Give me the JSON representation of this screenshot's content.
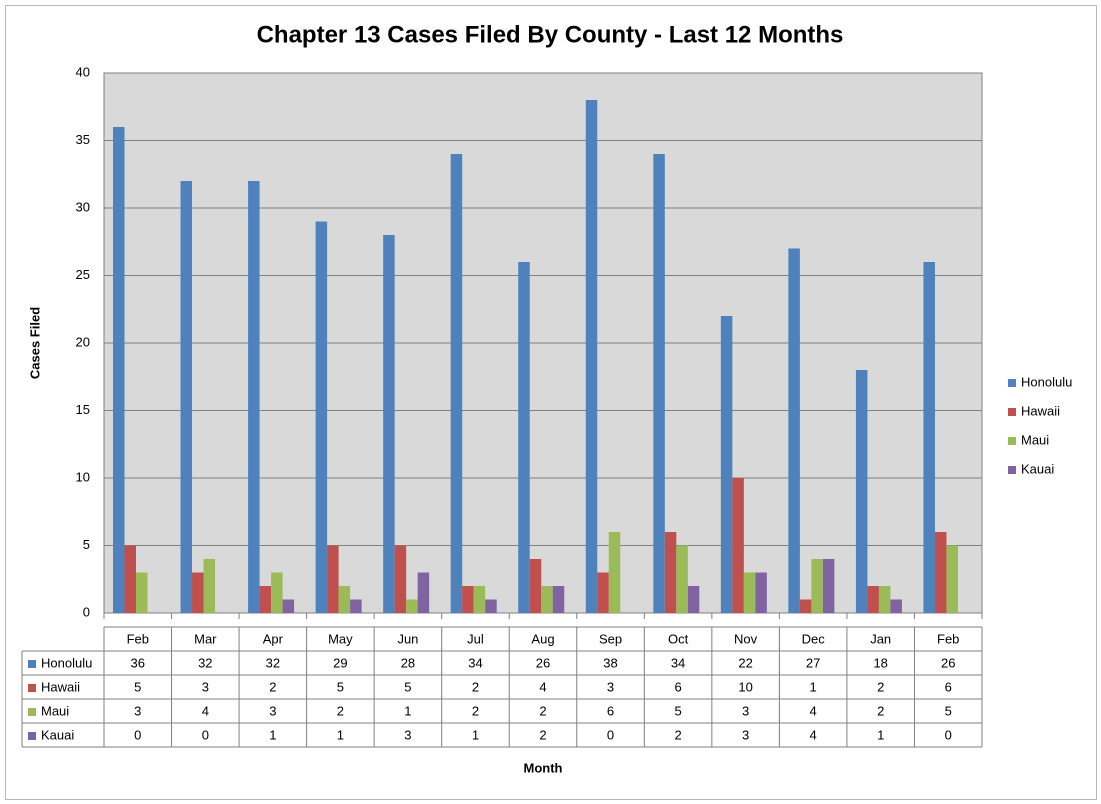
{
  "chart_data": {
    "type": "bar",
    "title": "Chapter 13 Cases Filed By County - Last 12 Months",
    "xlabel": "Month",
    "ylabel": "Cases Filed",
    "ylim": [
      0,
      40
    ],
    "yticks": [
      0,
      5,
      10,
      15,
      20,
      25,
      30,
      35,
      40
    ],
    "grid": true,
    "legend": "right",
    "data_table": true,
    "categories": [
      "Feb",
      "Mar",
      "Apr",
      "May",
      "Jun",
      "Jul",
      "Aug",
      "Sep",
      "Oct",
      "Nov",
      "Dec",
      "Jan",
      "Feb"
    ],
    "series": [
      {
        "name": "Honolulu",
        "color": "#4f81bd",
        "values": [
          36,
          32,
          32,
          29,
          28,
          34,
          26,
          38,
          34,
          22,
          27,
          18,
          26
        ]
      },
      {
        "name": "Hawaii",
        "color": "#c0504d",
        "values": [
          5,
          3,
          2,
          5,
          5,
          2,
          4,
          3,
          6,
          10,
          1,
          2,
          6
        ]
      },
      {
        "name": "Maui",
        "color": "#9bbb59",
        "values": [
          3,
          4,
          3,
          2,
          1,
          2,
          2,
          6,
          5,
          3,
          4,
          2,
          5
        ]
      },
      {
        "name": "Kauai",
        "color": "#8064a2",
        "values": [
          0,
          0,
          1,
          1,
          3,
          1,
          2,
          0,
          2,
          3,
          4,
          1,
          0
        ]
      }
    ],
    "plot_background": "#d9d9d9"
  }
}
